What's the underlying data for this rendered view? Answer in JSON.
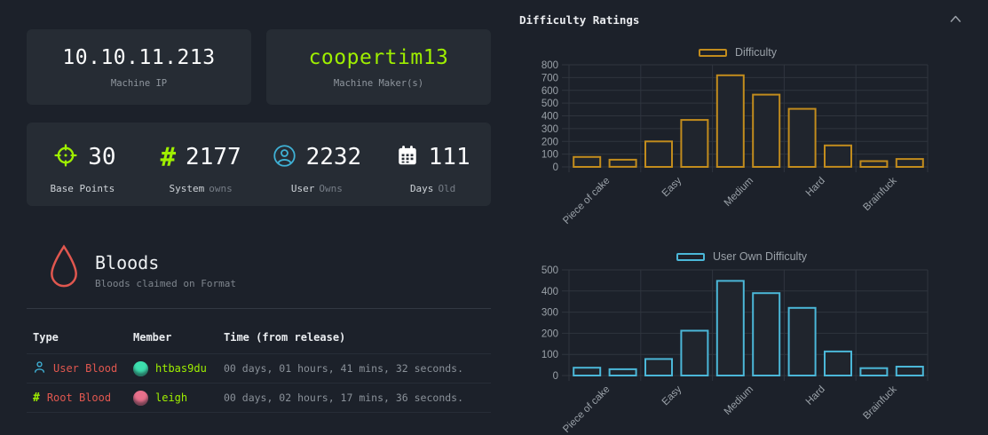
{
  "machine": {
    "ip": "10.10.11.213",
    "ip_label": "Machine IP",
    "maker": "coopertim13",
    "maker_label": "Machine Maker(s)"
  },
  "stats": {
    "items": [
      {
        "icon": "target-icon",
        "value": "30",
        "label_main": "Base Points",
        "label_sub": ""
      },
      {
        "icon": "hash-icon",
        "value": "2177",
        "label_main": "System",
        "label_sub": "owns"
      },
      {
        "icon": "user-icon",
        "value": "2232",
        "label_main": "User",
        "label_sub": "Owns"
      },
      {
        "icon": "calendar-icon",
        "value": "111",
        "label_main": "Days",
        "label_sub": "Old"
      }
    ]
  },
  "bloods": {
    "title": "Bloods",
    "subtitle": "Bloods claimed on Format",
    "columns": {
      "type": "Type",
      "member": "Member",
      "time": "Time (from release)"
    },
    "rows": [
      {
        "type": "User Blood",
        "type_icon": "user-icon",
        "member": "htbas9du",
        "avatar_color": "#3ddfae",
        "time": "00 days, 01 hours, 41 mins, 32 seconds."
      },
      {
        "type": "Root Blood",
        "type_icon": "hash-icon",
        "member": "leigh",
        "avatar_color": "#e8708b",
        "time": "00 days, 02 hours, 17 mins, 36 seconds."
      }
    ]
  },
  "difficulty_panel": {
    "title": "Difficulty Ratings",
    "collapse_icon": "chevron-up-icon"
  },
  "chart_data": [
    {
      "type": "bar",
      "legend": "Difficulty",
      "legend_position": "top-center",
      "color": "#c28c1d",
      "categories": [
        "Piece of cake",
        "Easy",
        "Medium",
        "Hard",
        "Brainfuck"
      ],
      "bars_per_category": 2,
      "values": [
        78,
        56,
        200,
        368,
        718,
        566,
        455,
        168,
        45,
        62
      ],
      "ylim": [
        0,
        800
      ],
      "ystep": 100,
      "grid": true
    },
    {
      "type": "bar",
      "legend": "User Own Difficulty",
      "legend_position": "top-center",
      "color": "#4bb7d8",
      "categories": [
        "Piece of cake",
        "Easy",
        "Medium",
        "Hard",
        "Brainfuck"
      ],
      "bars_per_category": 2,
      "values": [
        37,
        30,
        78,
        212,
        448,
        390,
        320,
        114,
        35,
        42
      ],
      "ylim": [
        0,
        500
      ],
      "ystep": 100,
      "grid": true
    }
  ],
  "colors": {
    "background": "#1c212a",
    "card": "#262c34",
    "accent_green": "#9fef00",
    "accent_blue": "#3fb1d5",
    "accent_red": "#e0574f",
    "difficulty_amber": "#c28c1d",
    "user_difficulty_blue": "#4bb7d8",
    "muted_text": "#8f969e"
  }
}
